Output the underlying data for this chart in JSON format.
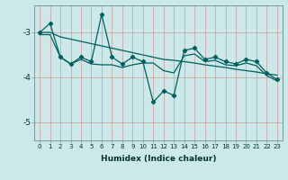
{
  "title": "",
  "xlabel": "Humidex (Indice chaleur)",
  "background_color": "#cce8e8",
  "grid_color": "#aacccc",
  "line_color": "#006060",
  "xlim": [
    -0.5,
    23.5
  ],
  "ylim": [
    -5.4,
    -2.4
  ],
  "yticks": [
    -5,
    -4,
    -3
  ],
  "xticks": [
    0,
    1,
    2,
    3,
    4,
    5,
    6,
    7,
    8,
    9,
    10,
    11,
    12,
    13,
    14,
    15,
    16,
    17,
    18,
    19,
    20,
    21,
    22,
    23
  ],
  "series_main_x": [
    0,
    1,
    2,
    3,
    4,
    5,
    6,
    7,
    8,
    9,
    10,
    11,
    12,
    13,
    14,
    15,
    16,
    17,
    18,
    19,
    20,
    21,
    22,
    23
  ],
  "series_main_y": [
    -3.0,
    -2.8,
    -3.55,
    -3.7,
    -3.55,
    -3.65,
    -2.6,
    -3.55,
    -3.7,
    -3.55,
    -3.65,
    -4.55,
    -4.3,
    -4.4,
    -3.4,
    -3.35,
    -3.6,
    -3.55,
    -3.65,
    -3.7,
    -3.6,
    -3.65,
    -3.9,
    -4.05
  ],
  "series_upper_x": [
    0,
    1,
    2,
    3,
    4,
    5,
    6,
    7,
    8,
    9,
    10,
    11,
    12,
    13,
    14,
    15,
    16,
    17,
    18,
    19,
    20,
    21,
    22,
    23
  ],
  "series_upper_y": [
    -3.0,
    -3.0,
    -3.1,
    -3.15,
    -3.2,
    -3.25,
    -3.3,
    -3.35,
    -3.4,
    -3.45,
    -3.5,
    -3.55,
    -3.6,
    -3.62,
    -3.65,
    -3.68,
    -3.72,
    -3.75,
    -3.78,
    -3.82,
    -3.85,
    -3.88,
    -3.92,
    -3.95
  ],
  "series_lower_x": [
    0,
    1,
    2,
    3,
    4,
    5,
    6,
    7,
    8,
    9,
    10,
    11,
    12,
    13,
    14,
    15,
    16,
    17,
    18,
    19,
    20,
    21,
    22,
    23
  ],
  "series_lower_y": [
    -3.05,
    -3.05,
    -3.55,
    -3.7,
    -3.6,
    -3.7,
    -3.72,
    -3.72,
    -3.78,
    -3.72,
    -3.68,
    -3.68,
    -3.85,
    -3.9,
    -3.52,
    -3.48,
    -3.65,
    -3.62,
    -3.72,
    -3.74,
    -3.68,
    -3.74,
    -3.96,
    -4.08
  ]
}
